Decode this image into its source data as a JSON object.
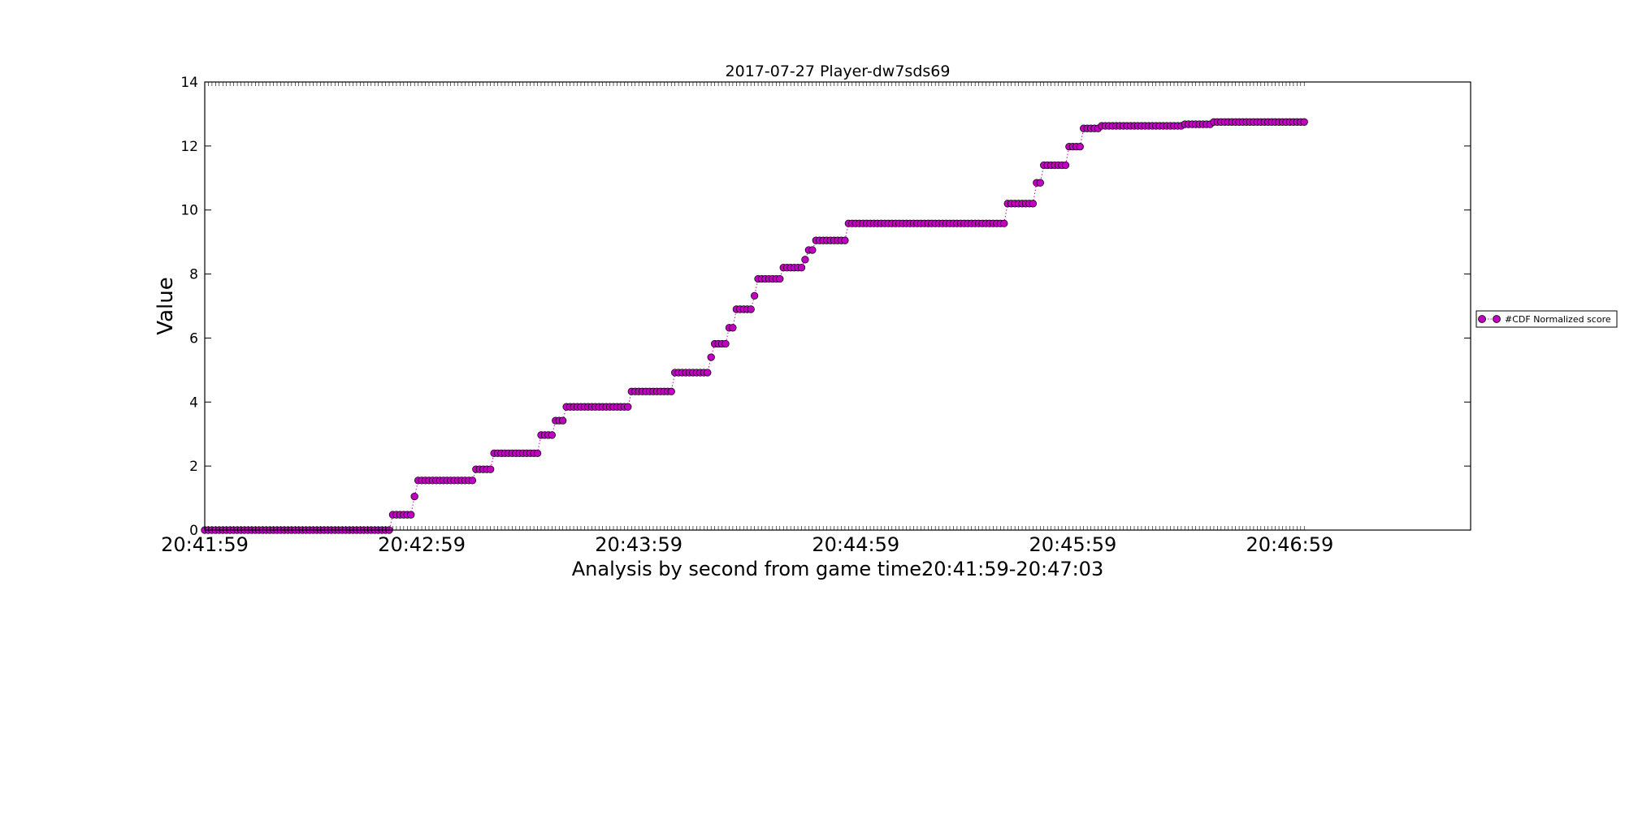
{
  "chart_data": {
    "type": "scatter",
    "title": "2017-07-27 Player-dw7sds69",
    "xlabel": "Analysis by second from game time20:41:59-20:47:03",
    "ylabel": "Value",
    "x_unit": "time of day (HH:MM:SS)",
    "xlim": [
      "20:41:59",
      "20:47:49"
    ],
    "ylim": [
      0,
      14
    ],
    "x_ticks": [
      "20:41:59",
      "20:42:59",
      "20:43:59",
      "20:44:59",
      "20:45:59",
      "20:46:59"
    ],
    "y_ticks": [
      0,
      2,
      4,
      6,
      8,
      10,
      12,
      14
    ],
    "grid": false,
    "legend": {
      "position": "right",
      "entries": [
        "#CDF Normalized score"
      ]
    },
    "series": [
      {
        "name": "#CDF Normalized score",
        "color": "#bf00bf",
        "marker": "circle",
        "line_style": "dotted",
        "segments": [
          {
            "from": "20:41:59",
            "to": "20:42:50",
            "value": 0
          },
          {
            "from": "20:42:51",
            "to": "20:42:56",
            "value": 0.48
          },
          {
            "from": "20:42:57",
            "to": "20:42:57",
            "value": 1.05
          },
          {
            "from": "20:42:58",
            "to": "20:43:13",
            "value": 1.55
          },
          {
            "from": "20:43:14",
            "to": "20:43:18",
            "value": 1.9
          },
          {
            "from": "20:43:19",
            "to": "20:43:31",
            "value": 2.4
          },
          {
            "from": "20:43:32",
            "to": "20:43:35",
            "value": 2.97
          },
          {
            "from": "20:43:36",
            "to": "20:43:38",
            "value": 3.42
          },
          {
            "from": "20:43:39",
            "to": "20:43:56",
            "value": 3.85
          },
          {
            "from": "20:43:57",
            "to": "20:44:08",
            "value": 4.33
          },
          {
            "from": "20:44:09",
            "to": "20:44:18",
            "value": 4.92
          },
          {
            "from": "20:44:19",
            "to": "20:44:19",
            "value": 5.4
          },
          {
            "from": "20:44:20",
            "to": "20:44:23",
            "value": 5.82
          },
          {
            "from": "20:44:24",
            "to": "20:44:25",
            "value": 6.32
          },
          {
            "from": "20:44:26",
            "to": "20:44:30",
            "value": 6.9
          },
          {
            "from": "20:44:31",
            "to": "20:44:31",
            "value": 7.32
          },
          {
            "from": "20:44:32",
            "to": "20:44:38",
            "value": 7.85
          },
          {
            "from": "20:44:39",
            "to": "20:44:44",
            "value": 8.2
          },
          {
            "from": "20:44:45",
            "to": "20:44:45",
            "value": 8.45
          },
          {
            "from": "20:44:46",
            "to": "20:44:47",
            "value": 8.75
          },
          {
            "from": "20:44:48",
            "to": "20:44:56",
            "value": 9.05
          },
          {
            "from": "20:44:57",
            "to": "20:45:40",
            "value": 9.58
          },
          {
            "from": "20:45:41",
            "to": "20:45:48",
            "value": 10.2
          },
          {
            "from": "20:45:49",
            "to": "20:45:50",
            "value": 10.85
          },
          {
            "from": "20:45:51",
            "to": "20:45:57",
            "value": 11.4
          },
          {
            "from": "20:45:58",
            "to": "20:46:01",
            "value": 11.98
          },
          {
            "from": "20:46:02",
            "to": "20:46:06",
            "value": 12.55
          },
          {
            "from": "20:46:07",
            "to": "20:46:29",
            "value": 12.63
          },
          {
            "from": "20:46:30",
            "to": "20:46:37",
            "value": 12.68
          },
          {
            "from": "20:46:38",
            "to": "20:47:03",
            "value": 12.75
          }
        ]
      }
    ]
  }
}
